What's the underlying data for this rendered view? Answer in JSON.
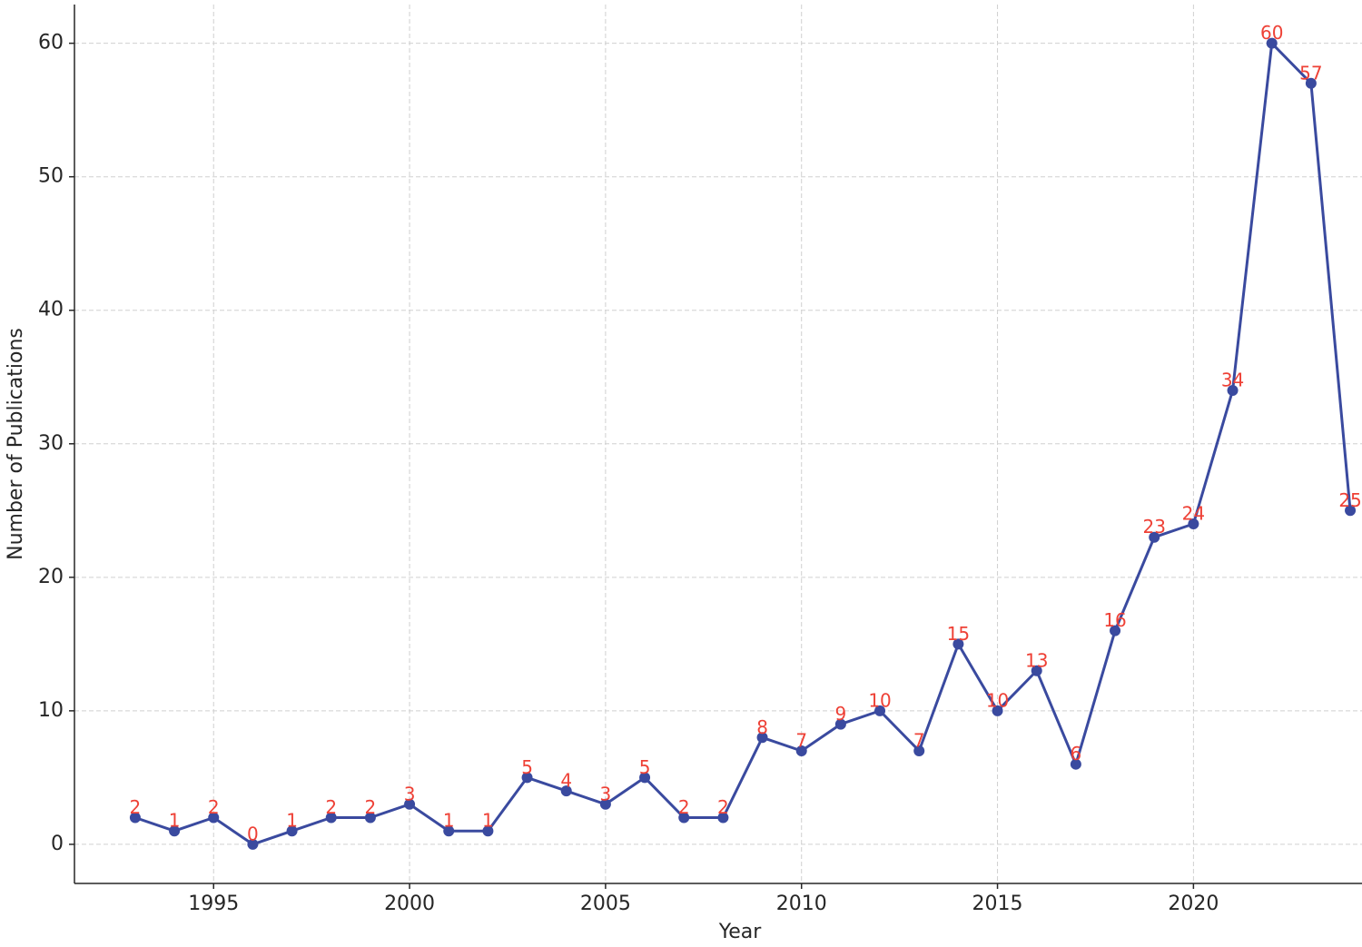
{
  "chart_data": {
    "type": "line",
    "x_label": "Year",
    "y_label": "Number of Publications",
    "x": [
      1993,
      1994,
      1995,
      1996,
      1997,
      1998,
      1999,
      2000,
      2001,
      2002,
      2003,
      2004,
      2005,
      2006,
      2007,
      2008,
      2009,
      2010,
      2011,
      2012,
      2013,
      2014,
      2015,
      2016,
      2017,
      2018,
      2019,
      2020,
      2021,
      2022,
      2023,
      2024
    ],
    "series": [
      {
        "color": "#3a4a9f",
        "label_color": "#ee4136",
        "values": [
          2,
          1,
          2,
          0,
          1,
          2,
          2,
          3,
          1,
          1,
          5,
          4,
          3,
          5,
          2,
          2,
          8,
          7,
          9,
          10,
          7,
          15,
          10,
          13,
          6,
          16,
          23,
          24,
          34,
          60,
          57,
          25
        ]
      }
    ],
    "xlim": [
      1991.45,
      2024.3
    ],
    "xticks": [
      1995,
      2000,
      2005,
      2010,
      2015,
      2020
    ],
    "ylim": [
      -2.93,
      62.9
    ],
    "yticks": [
      0,
      10,
      20,
      30,
      40,
      50,
      60
    ],
    "grid": true,
    "data_labels": true
  }
}
